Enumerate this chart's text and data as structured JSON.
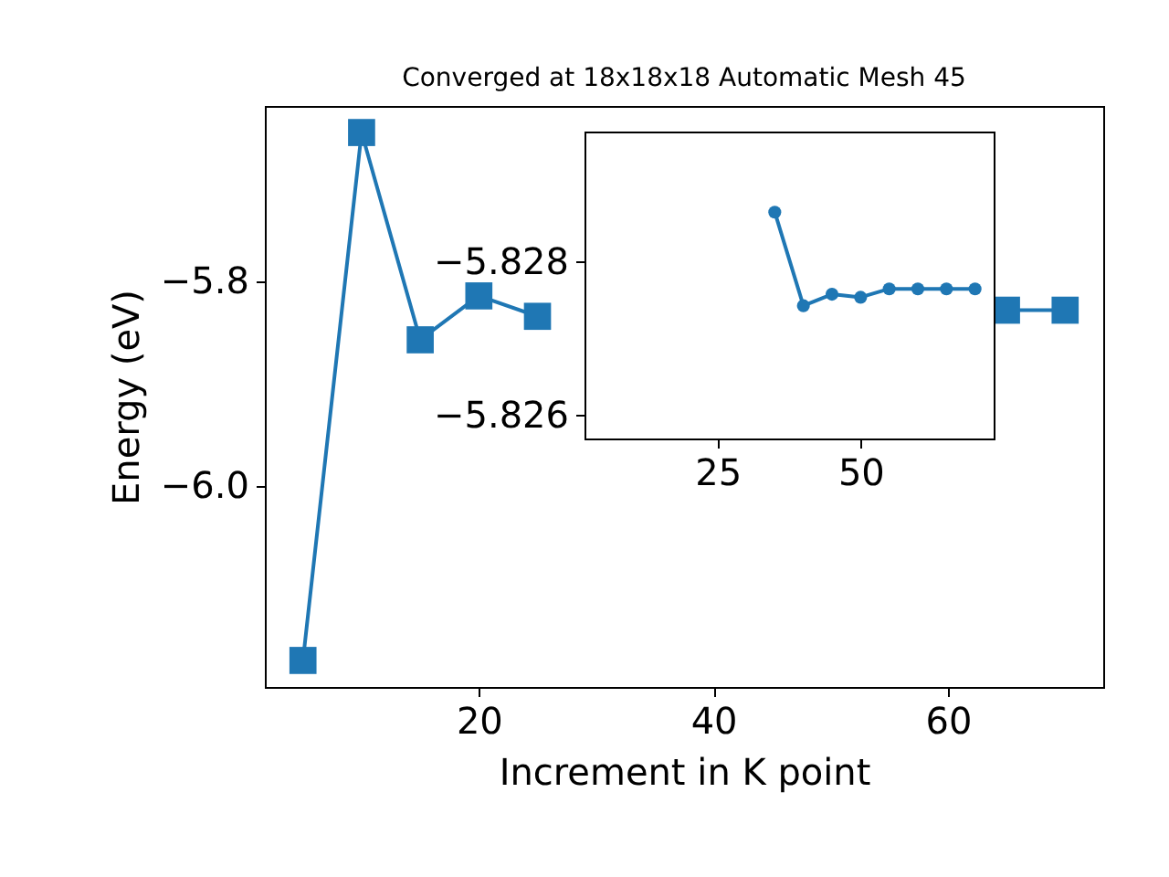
{
  "chart_data": [
    {
      "type": "line",
      "title": "Converged at 18x18x18 Automatic Mesh 45",
      "xlabel": "Increment in K point",
      "ylabel": "Energy (eV)",
      "x": [
        5,
        10,
        15,
        20,
        25,
        30,
        35,
        40,
        45,
        50,
        55,
        60,
        65,
        70
      ],
      "series": [
        {
          "color": "#1f77b4",
          "values": [
            -6.171,
            -5.654,
            -5.857,
            -5.814,
            -5.834,
            null,
            null,
            null,
            null,
            null,
            null,
            null,
            -5.828,
            -5.828
          ]
        }
      ],
      "xlim": [
        1.75,
        73.25
      ],
      "ylim": [
        -6.197,
        -5.628
      ],
      "xticks": [
        20,
        40,
        60
      ],
      "yticks": [
        {
          "value": -6.0,
          "label": "−6.0"
        },
        {
          "value": -5.8,
          "label": "−5.8"
        }
      ],
      "grid": false,
      "legend": false,
      "marker": "square",
      "line_style": "solid"
    },
    {
      "type": "line",
      "x": [
        35,
        40,
        45,
        50,
        55,
        60,
        65,
        70
      ],
      "series": [
        {
          "color": "#1f77b4",
          "values": [
            -5.82865,
            -5.82743,
            -5.82758,
            -5.82754,
            -5.82765,
            -5.82765,
            -5.82765,
            -5.82765
          ]
        }
      ],
      "xlim": [
        1.75,
        73.25
      ],
      "ylim": [
        -5.8257,
        -5.8297
      ],
      "xticks": [
        25,
        50
      ],
      "yticks": [
        {
          "value": -5.828,
          "label": "−5.828"
        },
        {
          "value": -5.826,
          "label": "−5.826"
        }
      ],
      "grid": false,
      "legend": false,
      "marker": "circle",
      "line_style": "solid"
    }
  ]
}
